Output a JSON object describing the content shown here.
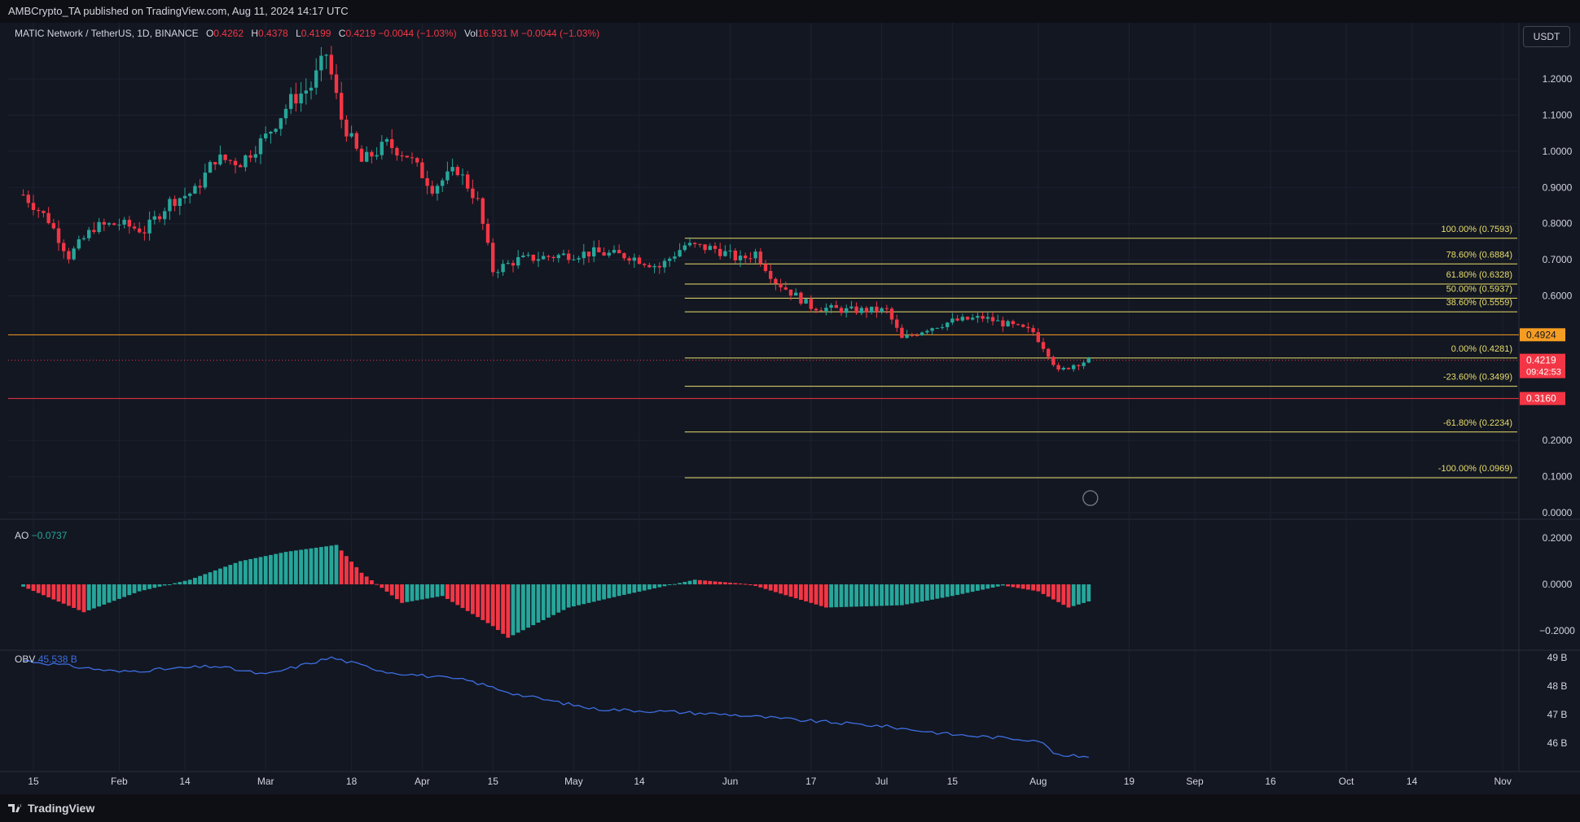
{
  "header": {
    "published": "AMBCrypto_TA published on TradingView.com, Aug 11, 2024 14:17 UTC"
  },
  "brand": {
    "name": "TradingView"
  },
  "currency_button": "USDT",
  "legend": {
    "symbol": "MATIC Network / TetherUS, 1D, BINANCE",
    "o_label": "O",
    "o_value": "0.4262",
    "h_label": "H",
    "h_value": "0.4378",
    "l_label": "L",
    "l_value": "0.4199",
    "c_label": "C",
    "c_value": "0.4219",
    "change": "−0.0044 (−1.03%)",
    "vol_label": "Vol",
    "vol_value": "16.931 M",
    "vol_change": "−0.0044 (−1.03%)"
  },
  "ao_legend": {
    "name": "AO",
    "value": "−0.0737"
  },
  "obv_legend": {
    "name": "OBV",
    "value": "45.538 B"
  },
  "colors": {
    "up": "#26a69a",
    "down": "#f23645",
    "fib": "#e8de6b",
    "orange_level": "#f59d23",
    "red_level": "#f23645",
    "obv": "#3d6ee0",
    "background": "#131722",
    "grid": "#1e2230"
  },
  "chart_data": {
    "type": "candlestick",
    "price_axis": {
      "ticks": [
        "1.2000",
        "1.1000",
        "1.0000",
        "0.9000",
        "0.8000",
        "0.7000",
        "0.6000",
        "0.2000",
        "0.1000",
        "0.0000"
      ],
      "ylim": [
        0.0,
        1.2
      ]
    },
    "time_axis": {
      "ticks": [
        "15",
        "Feb",
        "14",
        "Mar",
        "18",
        "Apr",
        "15",
        "May",
        "14",
        "Jun",
        "17",
        "Jul",
        "15",
        "Aug",
        "19",
        "Sep",
        "16",
        "Oct",
        "14",
        "Nov"
      ]
    },
    "levels": [
      {
        "label": "0.4924",
        "value": 0.4924,
        "kind": "orange"
      },
      {
        "label": "0.3160",
        "value": 0.316,
        "kind": "red"
      }
    ],
    "current_price": {
      "price": "0.4219",
      "countdown": "09:42:53",
      "value": 0.4219
    },
    "fib_levels": [
      {
        "label": "100.00% (0.7593)",
        "value": 0.7593
      },
      {
        "label": "78.60% (0.6884)",
        "value": 0.6884
      },
      {
        "label": "61.80% (0.6328)",
        "value": 0.6328
      },
      {
        "label": "50.00% (0.5937)",
        "value": 0.5937
      },
      {
        "label": "38.60% (0.5559)",
        "value": 0.5559
      },
      {
        "label": "0.00% (0.4281)",
        "value": 0.4281
      },
      {
        "label": "-23.60% (0.3499)",
        "value": 0.3499
      },
      {
        "label": "-61.80% (0.2234)",
        "value": 0.2234
      },
      {
        "label": "-100.00% (0.0969)",
        "value": 0.0969
      }
    ],
    "fib_start_date": "2024-05-23",
    "price_path": [
      [
        "2024-01-13",
        0.88
      ],
      [
        "2024-01-18",
        0.81
      ],
      [
        "2024-01-22",
        0.71
      ],
      [
        "2024-01-27",
        0.79
      ],
      [
        "2024-02-01",
        0.8
      ],
      [
        "2024-02-06",
        0.78
      ],
      [
        "2024-02-11",
        0.86
      ],
      [
        "2024-02-16",
        0.89
      ],
      [
        "2024-02-20",
        0.98
      ],
      [
        "2024-02-25",
        0.97
      ],
      [
        "2024-03-01",
        1.04
      ],
      [
        "2024-03-06",
        1.14
      ],
      [
        "2024-03-10",
        1.18
      ],
      [
        "2024-03-13",
        1.27
      ],
      [
        "2024-03-16",
        1.09
      ],
      [
        "2024-03-20",
        0.97
      ],
      [
        "2024-03-25",
        1.02
      ],
      [
        "2024-03-29",
        0.99
      ],
      [
        "2024-04-03",
        0.9
      ],
      [
        "2024-04-08",
        0.95
      ],
      [
        "2024-04-12",
        0.86
      ],
      [
        "2024-04-15",
        0.67
      ],
      [
        "2024-04-20",
        0.7
      ],
      [
        "2024-04-27",
        0.71
      ],
      [
        "2024-05-05",
        0.72
      ],
      [
        "2024-05-12",
        0.71
      ],
      [
        "2024-05-18",
        0.68
      ],
      [
        "2024-05-23",
        0.74
      ],
      [
        "2024-05-29",
        0.73
      ],
      [
        "2024-06-03",
        0.7
      ],
      [
        "2024-06-06",
        0.72
      ],
      [
        "2024-06-10",
        0.64
      ],
      [
        "2024-06-17",
        0.57
      ],
      [
        "2024-06-24",
        0.56
      ],
      [
        "2024-07-02",
        0.56
      ],
      [
        "2024-07-05",
        0.48
      ],
      [
        "2024-07-10",
        0.51
      ],
      [
        "2024-07-15",
        0.53
      ],
      [
        "2024-07-21",
        0.54
      ],
      [
        "2024-07-26",
        0.52
      ],
      [
        "2024-07-31",
        0.5
      ],
      [
        "2024-08-03",
        0.44
      ],
      [
        "2024-08-05",
        0.39
      ],
      [
        "2024-08-08",
        0.41
      ],
      [
        "2024-08-11",
        0.4219
      ]
    ],
    "ao": {
      "ticks": [
        "0.2000",
        "0.0000",
        "−0.2000"
      ],
      "ylim": [
        -0.25,
        0.22
      ],
      "path": [
        [
          "2024-01-13",
          -0.01
        ],
        [
          "2024-01-25",
          -0.12
        ],
        [
          "2024-02-05",
          -0.03
        ],
        [
          "2024-02-15",
          0.02
        ],
        [
          "2024-02-25",
          0.1
        ],
        [
          "2024-03-05",
          0.14
        ],
        [
          "2024-03-15",
          0.17
        ],
        [
          "2024-03-20",
          0.05
        ],
        [
          "2024-03-28",
          -0.08
        ],
        [
          "2024-04-05",
          -0.05
        ],
        [
          "2024-04-15",
          -0.18
        ],
        [
          "2024-04-18",
          -0.23
        ],
        [
          "2024-04-30",
          -0.1
        ],
        [
          "2024-05-10",
          -0.05
        ],
        [
          "2024-05-25",
          0.02
        ],
        [
          "2024-06-05",
          0.0
        ],
        [
          "2024-06-20",
          -0.1
        ],
        [
          "2024-07-05",
          -0.09
        ],
        [
          "2024-07-15",
          -0.05
        ],
        [
          "2024-07-25",
          -0.005
        ],
        [
          "2024-08-01",
          -0.03
        ],
        [
          "2024-08-07",
          -0.1
        ],
        [
          "2024-08-11",
          -0.0737
        ]
      ]
    },
    "obv": {
      "ticks": [
        "49 B",
        "48 B",
        "47 B",
        "46 B"
      ],
      "ylim": [
        45.3,
        49.1
      ],
      "path": [
        [
          "2024-01-13",
          48.9
        ],
        [
          "2024-02-01",
          48.5
        ],
        [
          "2024-02-20",
          48.7
        ],
        [
          "2024-03-01",
          48.4
        ],
        [
          "2024-03-14",
          49.0
        ],
        [
          "2024-03-25",
          48.5
        ],
        [
          "2024-04-10",
          48.2
        ],
        [
          "2024-04-20",
          47.7
        ],
        [
          "2024-05-05",
          47.2
        ],
        [
          "2024-05-20",
          47.1
        ],
        [
          "2024-06-01",
          47.0
        ],
        [
          "2024-06-15",
          46.8
        ],
        [
          "2024-07-01",
          46.6
        ],
        [
          "2024-07-15",
          46.3
        ],
        [
          "2024-08-01",
          46.1
        ],
        [
          "2024-08-05",
          45.55
        ],
        [
          "2024-08-11",
          45.538
        ]
      ]
    }
  }
}
